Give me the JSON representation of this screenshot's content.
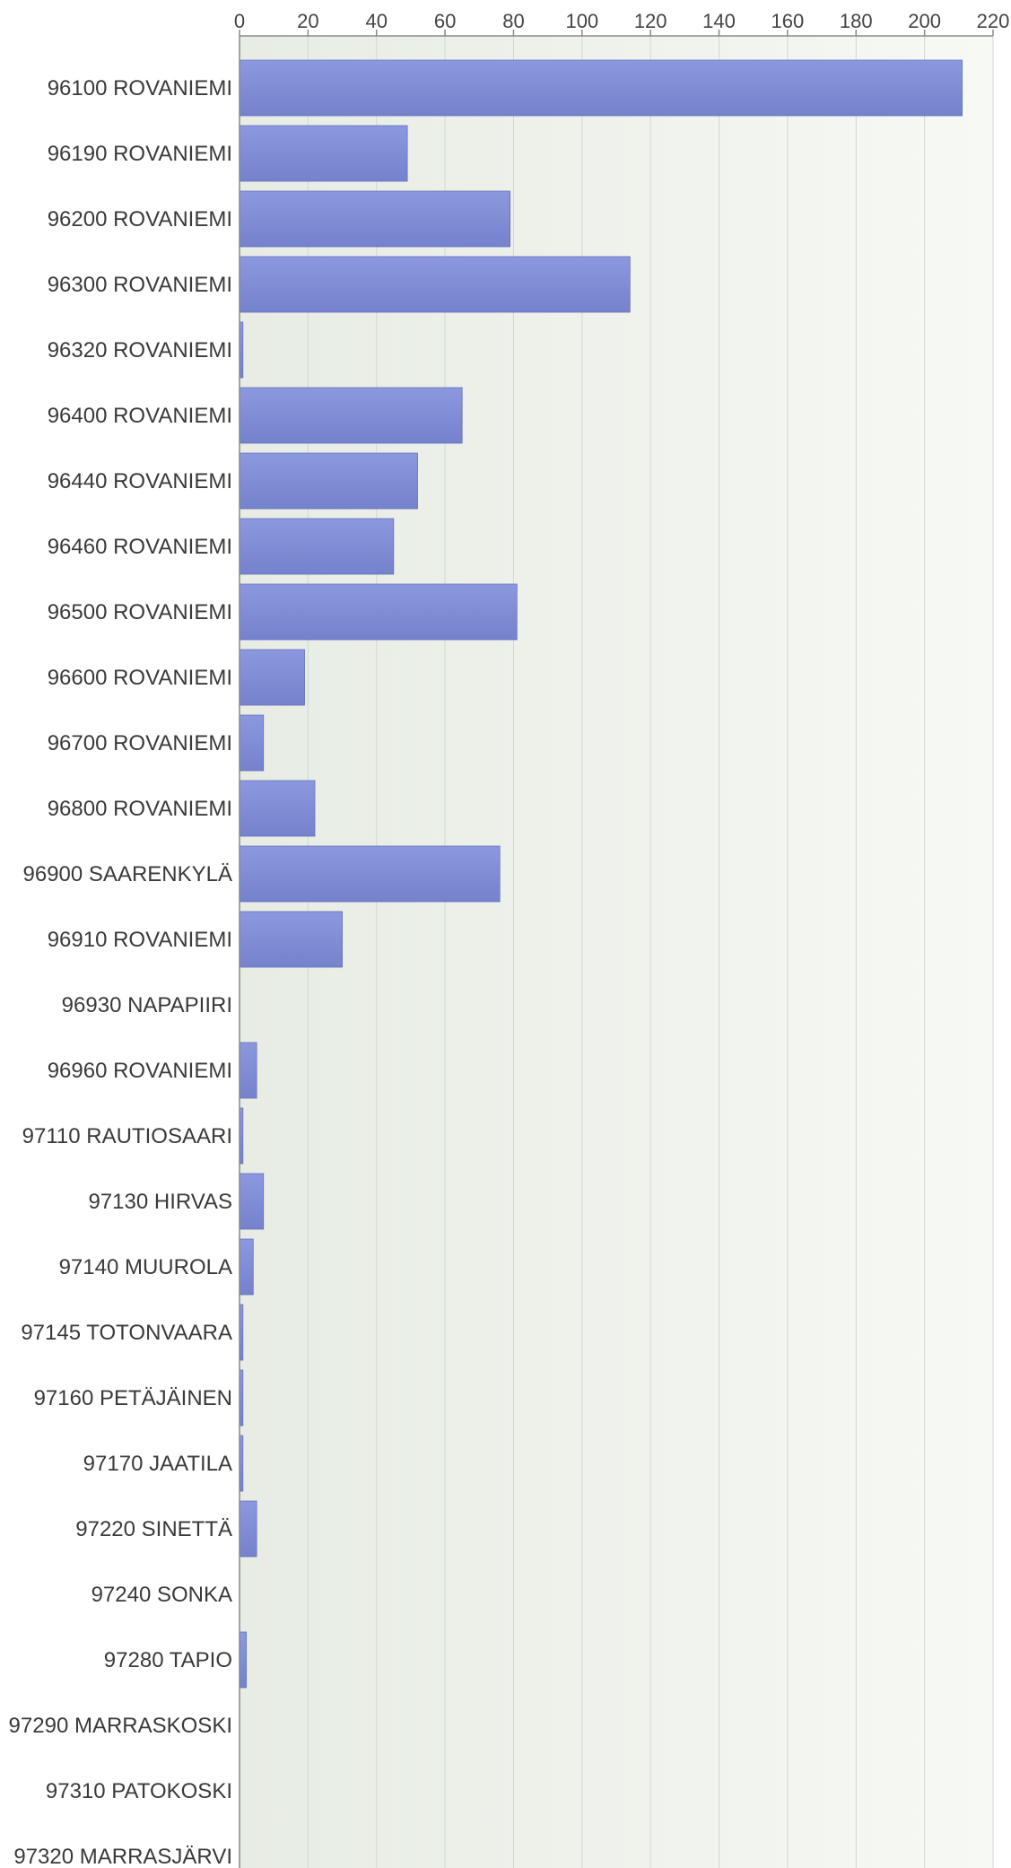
{
  "chart_data": {
    "type": "bar",
    "orientation": "horizontal",
    "categories": [
      "96100 ROVANIEMI",
      "96190 ROVANIEMI",
      "96200 ROVANIEMI",
      "96300 ROVANIEMI",
      "96320 ROVANIEMI",
      "96400 ROVANIEMI",
      "96440 ROVANIEMI",
      "96460 ROVANIEMI",
      "96500 ROVANIEMI",
      "96600 ROVANIEMI",
      "96700 ROVANIEMI",
      "96800 ROVANIEMI",
      "96900 SAARENKYLÄ",
      "96910 ROVANIEMI",
      "96930 NAPAPIIRI",
      "96960 ROVANIEMI",
      "97110 RAUTIOSAARI",
      "97130 HIRVAS",
      "97140 MUUROLA",
      "97145 TOTONVAARA",
      "97160 PETÄJÄINEN",
      "97170 JAATILA",
      "97220 SINETTÄ",
      "97240 SONKA",
      "97280 TAPIO",
      "97290 MARRASKOSKI",
      "97310 PATOKOSKI",
      "97320 MARRASJÄRVI"
    ],
    "values": [
      211,
      49,
      79,
      114,
      1,
      65,
      52,
      45,
      81,
      19,
      7,
      22,
      76,
      30,
      0,
      5,
      1,
      7,
      4,
      1,
      1,
      1,
      5,
      0,
      2,
      0,
      0,
      0
    ],
    "xlim": [
      0,
      220
    ],
    "xticks": [
      0,
      20,
      40,
      60,
      80,
      100,
      120,
      140,
      160,
      180,
      200,
      220
    ],
    "xaxis_position": "top",
    "grid": true,
    "title": "",
    "xlabel": "",
    "ylabel": "",
    "colors": {
      "bar_top": "#8c98de",
      "bar_bottom": "#7582cc",
      "bar_edge": "#6673bd",
      "plot_bg_left": "#e7ece4",
      "plot_bg_right": "#f7f9f4",
      "grid": "#d2d7cf",
      "axis": "#8a8a8a",
      "text": "#3a3a3a"
    }
  }
}
